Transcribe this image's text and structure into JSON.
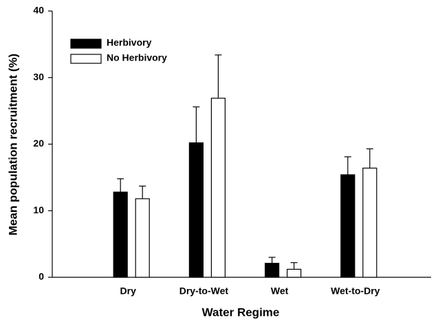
{
  "chart_data": {
    "type": "bar",
    "x_label": "Water Regime",
    "y_label": "Mean population recruitment (%)",
    "categories": [
      "Dry",
      "Dry-to-Wet",
      "Wet",
      "Wet-to-Dry"
    ],
    "series": [
      {
        "name": "Herbivory",
        "color": "#000000",
        "values": [
          12.8,
          20.2,
          2.1,
          15.4
        ],
        "errors": [
          2.0,
          5.4,
          0.9,
          2.7
        ]
      },
      {
        "name": "No Herbivory",
        "color": "#ffffff",
        "values": [
          11.8,
          26.9,
          1.2,
          16.4
        ],
        "errors": [
          1.9,
          6.5,
          1.0,
          2.9
        ]
      }
    ],
    "ylim": [
      0,
      40
    ],
    "yticks": [
      0,
      10,
      20,
      30,
      40
    ],
    "legend": "upper left"
  }
}
